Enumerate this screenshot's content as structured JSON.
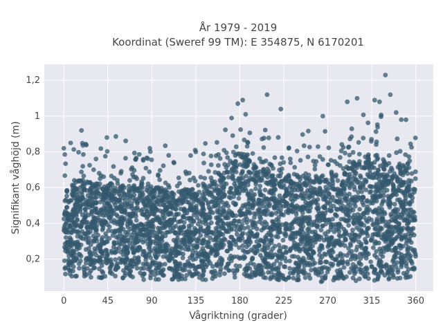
{
  "chart_data": {
    "type": "scatter",
    "title_line1": "År 1979 - 2019",
    "title_line2": "Koordinat (Sweref 99 TM): E 354875, N 6170201",
    "xlabel": "Vågriktning (grader)",
    "ylabel": "Signifikant våghöjd (m)",
    "xlim": [
      -20,
      378
    ],
    "ylim": [
      0.02,
      1.29
    ],
    "xticks": [
      0,
      45,
      90,
      135,
      180,
      225,
      270,
      315,
      360
    ],
    "xtick_labels": [
      "0",
      "45",
      "90",
      "135",
      "180",
      "225",
      "270",
      "315",
      "360"
    ],
    "yticks": [
      0.2,
      0.4,
      0.6,
      0.8,
      1.0,
      1.2
    ],
    "ytick_labels": [
      "0,2",
      "0,4",
      "0,6",
      "0,8",
      "1",
      "1,2"
    ],
    "grid": true,
    "background": "#e8e8f0",
    "marker_color": "#34586e",
    "dense_band_envelope": {
      "x": [
        0,
        20,
        45,
        90,
        135,
        160,
        170,
        180,
        195,
        225,
        270,
        290,
        310,
        320,
        335,
        350,
        360
      ],
      "y_min": [
        0.1,
        0.1,
        0.09,
        0.08,
        0.08,
        0.08,
        0.09,
        0.1,
        0.09,
        0.08,
        0.07,
        0.06,
        0.07,
        0.07,
        0.08,
        0.09,
        0.1
      ],
      "y_max": [
        0.6,
        0.65,
        0.62,
        0.6,
        0.58,
        0.66,
        0.74,
        0.8,
        0.72,
        0.66,
        0.66,
        0.72,
        0.78,
        0.76,
        0.74,
        0.72,
        0.68
      ]
    },
    "notable_points": [
      {
        "x": 0,
        "y": 0.82
      },
      {
        "x": 7,
        "y": 0.85
      },
      {
        "x": 18,
        "y": 0.92
      },
      {
        "x": 44,
        "y": 0.88
      },
      {
        "x": 88,
        "y": 0.82
      },
      {
        "x": 135,
        "y": 0.8
      },
      {
        "x": 178,
        "y": 1.07
      },
      {
        "x": 183,
        "y": 1.09
      },
      {
        "x": 186,
        "y": 1.01
      },
      {
        "x": 208,
        "y": 1.12
      },
      {
        "x": 222,
        "y": 1.04
      },
      {
        "x": 265,
        "y": 1.0
      },
      {
        "x": 290,
        "y": 1.08
      },
      {
        "x": 300,
        "y": 1.1
      },
      {
        "x": 318,
        "y": 1.09
      },
      {
        "x": 323,
        "y": 1.08
      },
      {
        "x": 329,
        "y": 1.23
      },
      {
        "x": 334,
        "y": 1.12
      },
      {
        "x": 340,
        "y": 1.02
      },
      {
        "x": 350,
        "y": 0.98
      }
    ]
  }
}
